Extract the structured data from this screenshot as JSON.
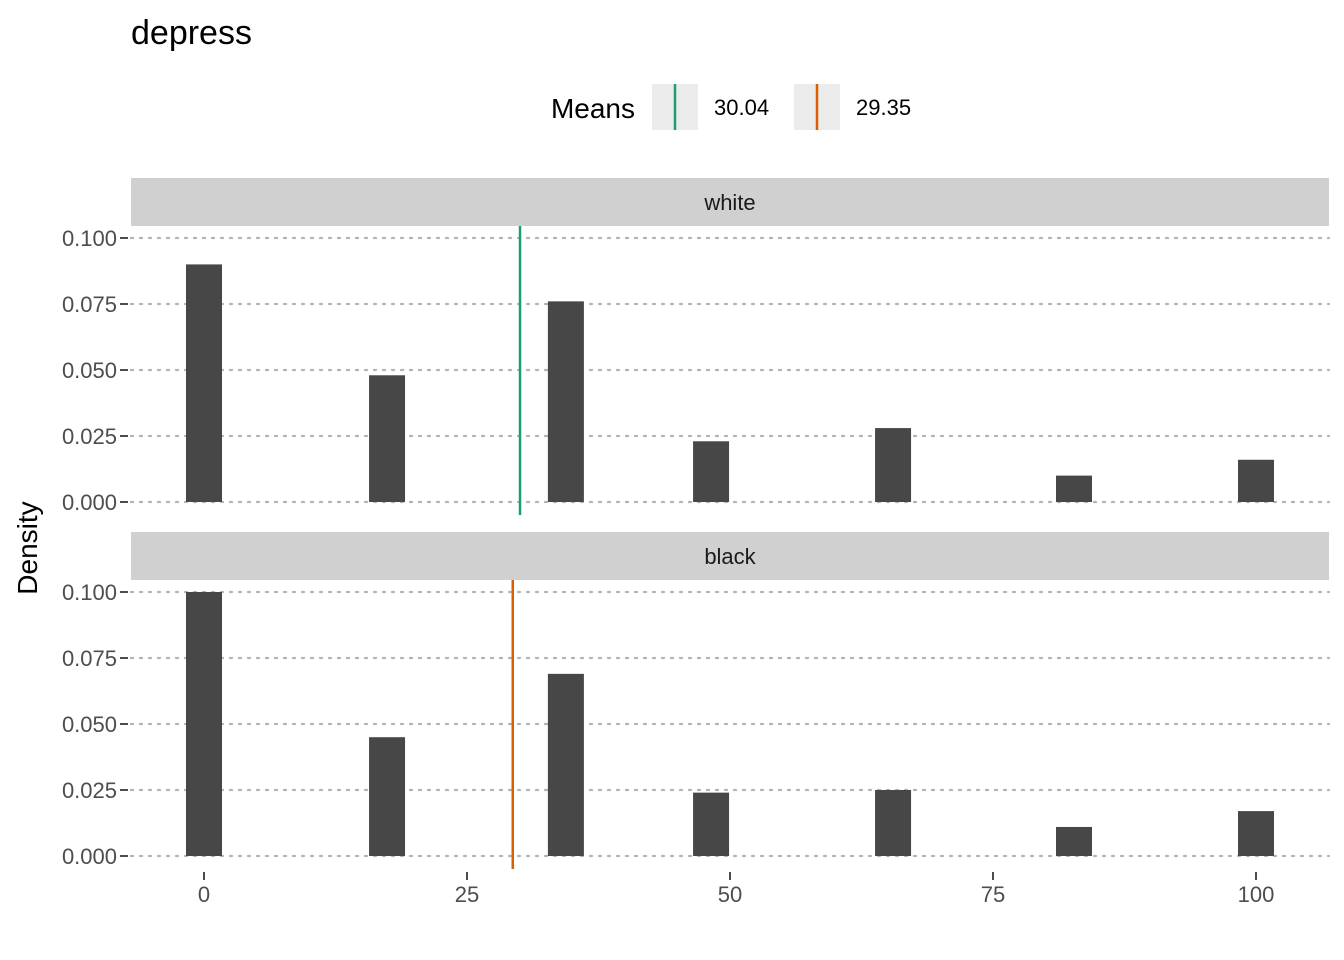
{
  "chart_data": {
    "type": "bar",
    "title": "depress",
    "xlabel": "",
    "ylabel": "Density",
    "xlim": [
      -7,
      107
    ],
    "ylim": [
      0,
      0.1
    ],
    "x_ticks": [
      "0",
      "25",
      "50",
      "75",
      "100"
    ],
    "y_ticks": [
      "0.000",
      "0.025",
      "0.050",
      "0.075",
      "0.100"
    ],
    "grid": "horizontal dotted",
    "legend": {
      "title": "Means",
      "placement": "top",
      "entries": [
        {
          "label": "30.04",
          "color": "#1b9e77"
        },
        {
          "label": "29.35",
          "color": "#d95f02"
        }
      ]
    },
    "bar_color": "#474747",
    "x": [
      0,
      17.4,
      34.4,
      48.2,
      65.5,
      82.7,
      100
    ],
    "series": [
      {
        "name": "white",
        "values": [
          0.09,
          0.048,
          0.076,
          0.023,
          0.028,
          0.01,
          0.016
        ],
        "mean": 30.04,
        "mean_color": "#1b9e77"
      },
      {
        "name": "black",
        "values": [
          0.1,
          0.045,
          0.069,
          0.024,
          0.025,
          0.011,
          0.017
        ],
        "mean": 29.35,
        "mean_color": "#d95f02"
      }
    ]
  }
}
